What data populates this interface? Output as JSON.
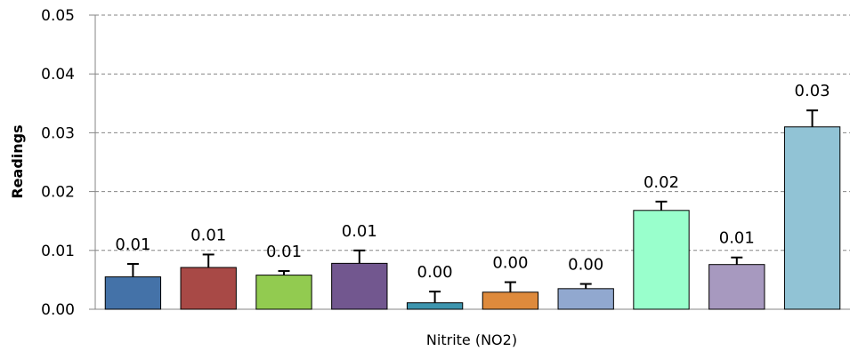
{
  "chart_data": {
    "type": "bar",
    "title": "",
    "xlabel": "Nitrite (NO2)",
    "ylabel": "Readings",
    "ylim": [
      0,
      0.05
    ],
    "yticks": [
      0.0,
      0.01,
      0.02,
      0.03,
      0.04,
      0.05
    ],
    "ytick_labels": [
      "0.00",
      "0.01",
      "0.02",
      "0.03",
      "0.04",
      "0.05"
    ],
    "grid": true,
    "legend": "none",
    "bars": [
      {
        "value": 0.0055,
        "error": 0.0022,
        "label": "0.01",
        "color": "#4472A8"
      },
      {
        "value": 0.0071,
        "error": 0.0022,
        "label": "0.01",
        "color": "#A84946"
      },
      {
        "value": 0.0058,
        "error": 0.0007,
        "label": "0.01",
        "color": "#92CB50"
      },
      {
        "value": 0.0078,
        "error": 0.0022,
        "label": "0.01",
        "color": "#72578F"
      },
      {
        "value": 0.0011,
        "error": 0.0019,
        "label": "0.00",
        "color": "#3E95AE"
      },
      {
        "value": 0.0029,
        "error": 0.0017,
        "label": "0.00",
        "color": "#DE8A3C"
      },
      {
        "value": 0.0035,
        "error": 0.0008,
        "label": "0.00",
        "color": "#91A8CF"
      },
      {
        "value": 0.0168,
        "error": 0.0015,
        "label": "0.02",
        "color": "#99FFCC"
      },
      {
        "value": 0.0076,
        "error": 0.0012,
        "label": "0.01",
        "color": "#A799BF"
      },
      {
        "value": 0.031,
        "error": 0.0028,
        "label": "0.03",
        "color": "#91C3D5"
      }
    ]
  }
}
